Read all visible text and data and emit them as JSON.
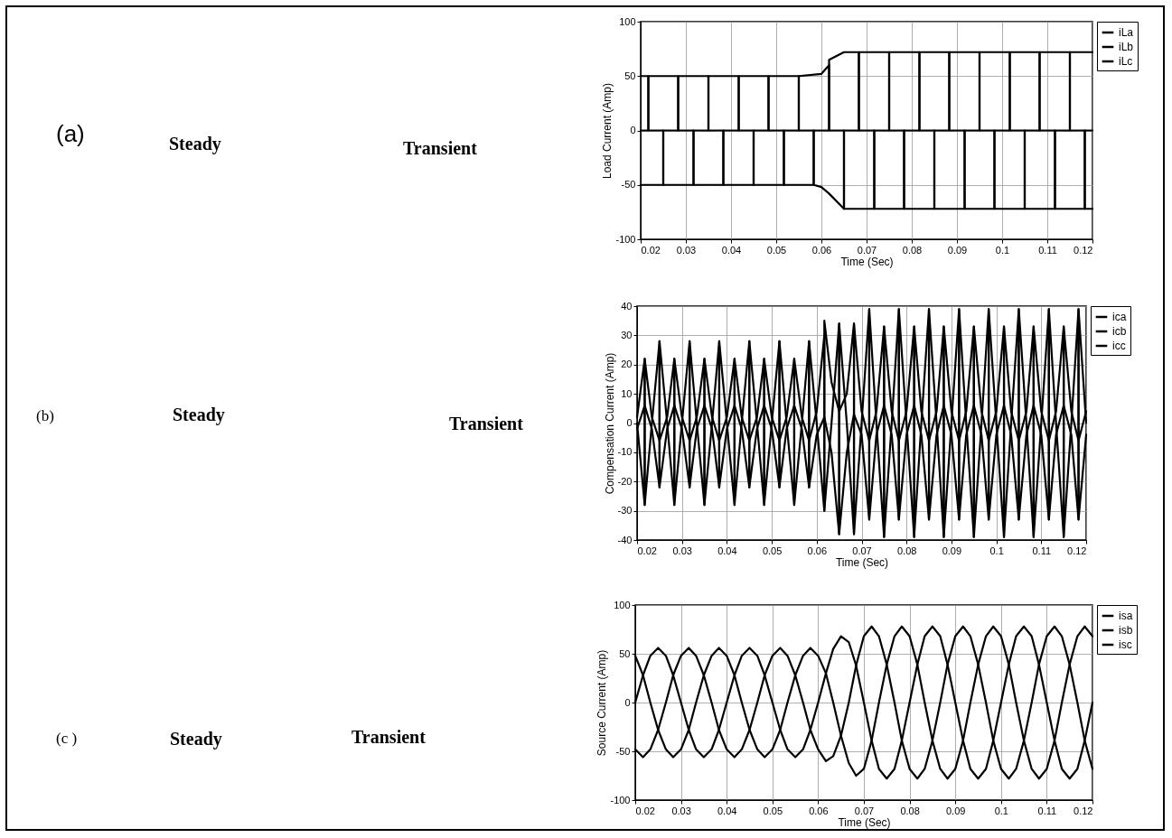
{
  "chart_data": [
    {
      "type": "line",
      "xlabel": "Time (Sec)",
      "ylabel": "Load Current (Amp)",
      "xlim": [
        0.02,
        0.12
      ],
      "ylim": [
        -100,
        100
      ],
      "xticks": [
        0.02,
        0.03,
        0.04,
        0.05,
        0.06,
        0.07,
        0.08,
        0.09,
        0.1,
        0.11,
        0.12
      ],
      "yticks": [
        -100,
        -50,
        0,
        50,
        100
      ],
      "grid": true,
      "legend": "top right",
      "annotations": [
        "(a)",
        "Steady",
        "Transient"
      ],
      "series": [
        {
          "name": "iLa",
          "color": "#000000",
          "x": [
            0.02,
            0.0217,
            0.0217,
            0.0283,
            0.0283,
            0.0317,
            0.0317,
            0.0383,
            0.0383,
            0.0417,
            0.0417,
            0.0483,
            0.0483,
            0.0517,
            0.0517,
            0.0583,
            0.0583,
            0.0617,
            0.0617,
            0.065,
            0.0683,
            0.0683,
            0.0717,
            0.0717,
            0.0783,
            0.0783,
            0.0817,
            0.0817,
            0.0883,
            0.0883,
            0.0917,
            0.0917,
            0.0983,
            0.0983,
            0.1017,
            0.1017,
            0.1083,
            0.1083,
            0.1117,
            0.1117,
            0.1183,
            0.1183,
            0.12
          ],
          "values": [
            0,
            0,
            50,
            50,
            0,
            0,
            -50,
            -50,
            0,
            0,
            50,
            50,
            0,
            0,
            -50,
            -50,
            0,
            0,
            65,
            72,
            72,
            0,
            0,
            -72,
            -72,
            0,
            0,
            72,
            72,
            0,
            0,
            -72,
            -72,
            0,
            0,
            72,
            72,
            0,
            0,
            -72,
            -72,
            0,
            0
          ]
        },
        {
          "name": "iLb",
          "color": "#000000",
          "x": [
            0.02,
            0.025,
            0.025,
            0.0283,
            0.0283,
            0.035,
            0.035,
            0.0383,
            0.0383,
            0.045,
            0.045,
            0.0483,
            0.0483,
            0.055,
            0.055,
            0.0583,
            0.0583,
            0.06,
            0.0617,
            0.065,
            0.065,
            0.0683,
            0.0683,
            0.075,
            0.075,
            0.0783,
            0.0783,
            0.085,
            0.085,
            0.0883,
            0.0883,
            0.095,
            0.095,
            0.0983,
            0.0983,
            0.105,
            0.105,
            0.1083,
            0.1083,
            0.115,
            0.115,
            0.1183,
            0.1183,
            0.12
          ],
          "values": [
            -50,
            -50,
            0,
            0,
            50,
            50,
            0,
            0,
            -50,
            -50,
            0,
            0,
            50,
            50,
            0,
            0,
            -50,
            -52,
            -58,
            -72,
            0,
            0,
            72,
            72,
            0,
            0,
            -72,
            -72,
            0,
            0,
            72,
            72,
            0,
            0,
            -72,
            -72,
            0,
            0,
            72,
            72,
            0,
            0,
            -72,
            -72
          ]
        },
        {
          "name": "iLc",
          "color": "#000000",
          "x": [
            0.02,
            0.0217,
            0.0217,
            0.025,
            0.025,
            0.0317,
            0.0317,
            0.035,
            0.035,
            0.0417,
            0.0417,
            0.045,
            0.045,
            0.0517,
            0.0517,
            0.055,
            0.055,
            0.06,
            0.0617,
            0.0617,
            0.065,
            0.065,
            0.0717,
            0.0717,
            0.075,
            0.075,
            0.0817,
            0.0817,
            0.085,
            0.085,
            0.0917,
            0.0917,
            0.095,
            0.095,
            0.1017,
            0.1017,
            0.105,
            0.105,
            0.1117,
            0.1117,
            0.115,
            0.115,
            0.12
          ],
          "values": [
            50,
            50,
            0,
            0,
            -50,
            -50,
            0,
            0,
            50,
            50,
            0,
            0,
            -50,
            -50,
            0,
            0,
            50,
            52,
            60,
            0,
            0,
            -72,
            -72,
            0,
            0,
            72,
            72,
            0,
            0,
            -72,
            -72,
            0,
            0,
            72,
            72,
            0,
            0,
            -72,
            -72,
            0,
            0,
            72,
            72
          ]
        }
      ]
    },
    {
      "type": "line",
      "xlabel": "Time (Sec)",
      "ylabel": "Compensation Current (Amp)",
      "xlim": [
        0.02,
        0.12
      ],
      "ylim": [
        -40,
        40
      ],
      "xticks": [
        0.02,
        0.03,
        0.04,
        0.05,
        0.06,
        0.07,
        0.08,
        0.09,
        0.1,
        0.11,
        0.12
      ],
      "yticks": [
        -40,
        -30,
        -20,
        -10,
        0,
        10,
        20,
        30,
        40
      ],
      "grid": true,
      "legend": "top right",
      "annotations": [
        "(b)",
        "Steady",
        "Transient"
      ],
      "x": [
        0.02,
        0.0217,
        0.0217,
        0.0233,
        0.025,
        0.025,
        0.0267,
        0.0283,
        0.0283,
        0.03,
        0.0317,
        0.0317,
        0.0333,
        0.035,
        0.035,
        0.0367,
        0.0383,
        0.0383,
        0.04,
        0.0417,
        0.0417,
        0.0433,
        0.045,
        0.045,
        0.0467,
        0.0483,
        0.0483,
        0.05,
        0.0517,
        0.0517,
        0.0533,
        0.055,
        0.055,
        0.0567,
        0.0583,
        0.0583,
        0.06,
        0.0617,
        0.0617,
        0.0633,
        0.065,
        0.065,
        0.0667,
        0.0683,
        0.0683,
        0.07,
        0.0717,
        0.0717,
        0.0733,
        0.075,
        0.075,
        0.0767,
        0.0783,
        0.0783,
        0.08,
        0.0817,
        0.0817,
        0.0833,
        0.085,
        0.085,
        0.0867,
        0.0883,
        0.0883,
        0.09,
        0.0917,
        0.0917,
        0.0933,
        0.095,
        0.095,
        0.0967,
        0.0983,
        0.0983,
        0.1,
        0.1017,
        0.1017,
        0.1033,
        0.105,
        0.105,
        0.1067,
        0.1083,
        0.1083,
        0.11,
        0.1117,
        0.1117,
        0.1133,
        0.115,
        0.115,
        0.1167,
        0.1183,
        0.1183,
        0.12
      ],
      "series": [
        {
          "name": "ica",
          "color": "#000000",
          "values": [
            0,
            -28,
            22,
            2,
            -6,
            -6,
            2,
            22,
            -28,
            0,
            28,
            -22,
            -2,
            6,
            6,
            -2,
            -22,
            28,
            0,
            -28,
            22,
            2,
            -6,
            -6,
            2,
            22,
            -28,
            0,
            28,
            -22,
            -2,
            6,
            6,
            -2,
            -22,
            28,
            0,
            -30,
            35,
            14,
            4,
            4,
            10,
            34,
            -38,
            0,
            39,
            -33,
            -4,
            6,
            6,
            -4,
            -33,
            39,
            0,
            -39,
            33,
            4,
            -6,
            -6,
            4,
            33,
            -39,
            0,
            39,
            -33,
            -4,
            6,
            6,
            -4,
            -33,
            39,
            0,
            -39,
            33,
            4,
            -6,
            -6,
            4,
            33,
            -39,
            0,
            39,
            -33,
            -4,
            6,
            6,
            -4,
            -33,
            39,
            0
          ]
        },
        {
          "name": "icb",
          "color": "#000000",
          "values": [
            -2,
            6,
            6,
            -2,
            -22,
            28,
            0,
            -28,
            22,
            2,
            -6,
            -6,
            2,
            22,
            -28,
            0,
            28,
            -22,
            -2,
            6,
            6,
            -2,
            -22,
            28,
            0,
            -28,
            22,
            2,
            -6,
            -6,
            2,
            22,
            -28,
            0,
            28,
            -22,
            -4,
            2,
            2,
            -10,
            -38,
            34,
            0,
            -38,
            34,
            4,
            -6,
            -6,
            4,
            33,
            -39,
            0,
            39,
            -33,
            -4,
            6,
            6,
            -4,
            -33,
            39,
            0,
            -39,
            33,
            4,
            -6,
            -6,
            4,
            33,
            -39,
            0,
            39,
            -33,
            -4,
            6,
            6,
            -4,
            -33,
            39,
            0,
            -39,
            33,
            4,
            -6,
            -6,
            4,
            33,
            -39,
            0,
            39,
            -33,
            -4
          ]
        },
        {
          "name": "icc",
          "color": "#000000",
          "values": [
            2,
            22,
            -28,
            0,
            28,
            -22,
            -2,
            6,
            6,
            -2,
            -22,
            28,
            0,
            -28,
            22,
            2,
            -6,
            -6,
            2,
            22,
            -28,
            0,
            28,
            -22,
            -2,
            6,
            6,
            -2,
            -22,
            28,
            0,
            -28,
            22,
            2,
            -6,
            -6,
            4,
            30,
            -30,
            0,
            34,
            -38,
            -10,
            3,
            3,
            -4,
            -33,
            39,
            0,
            -39,
            33,
            4,
            -6,
            -6,
            4,
            33,
            -39,
            0,
            39,
            -33,
            -4,
            6,
            6,
            -4,
            -33,
            39,
            0,
            -39,
            33,
            4,
            -6,
            -6,
            4,
            33,
            -39,
            0,
            39,
            -33,
            -4,
            6,
            6,
            -4,
            -33,
            39,
            0,
            -39,
            33,
            4,
            -6,
            -6,
            4
          ]
        }
      ]
    },
    {
      "type": "line",
      "xlabel": "Time (Sec)",
      "ylabel": "Source Current (Amp)",
      "xlim": [
        0.02,
        0.12
      ],
      "ylim": [
        -100,
        100
      ],
      "xticks": [
        0.02,
        0.03,
        0.04,
        0.05,
        0.06,
        0.07,
        0.08,
        0.09,
        0.1,
        0.11,
        0.12
      ],
      "yticks": [
        -100,
        -50,
        0,
        50,
        100
      ],
      "grid": true,
      "legend": "top right",
      "annotations": [
        "(c )",
        "Steady",
        "Transient"
      ],
      "x": [
        0.02,
        0.0217,
        0.0233,
        0.025,
        0.0267,
        0.0283,
        0.03,
        0.0317,
        0.0333,
        0.035,
        0.0367,
        0.0383,
        0.04,
        0.0417,
        0.0433,
        0.045,
        0.0467,
        0.0483,
        0.05,
        0.0517,
        0.0533,
        0.055,
        0.0567,
        0.0583,
        0.06,
        0.0617,
        0.0633,
        0.065,
        0.0667,
        0.0683,
        0.07,
        0.0717,
        0.0733,
        0.075,
        0.0767,
        0.0783,
        0.08,
        0.0817,
        0.0833,
        0.085,
        0.0867,
        0.0883,
        0.09,
        0.0917,
        0.0933,
        0.095,
        0.0967,
        0.0983,
        0.1,
        0.1017,
        0.1033,
        0.105,
        0.1067,
        0.1083,
        0.11,
        0.1117,
        0.1133,
        0.115,
        0.1167,
        0.1183,
        0.12
      ],
      "series": [
        {
          "name": "isa",
          "color": "#000000",
          "values": [
            0,
            28,
            48,
            56,
            48,
            28,
            0,
            -28,
            -48,
            -56,
            -48,
            -28,
            0,
            28,
            48,
            56,
            48,
            28,
            0,
            -28,
            -48,
            -56,
            -48,
            -28,
            0,
            30,
            55,
            68,
            62,
            38,
            0,
            -39,
            -68,
            -78,
            -68,
            -39,
            0,
            39,
            68,
            78,
            68,
            39,
            0,
            -39,
            -68,
            -78,
            -68,
            -39,
            0,
            39,
            68,
            78,
            68,
            39,
            0,
            -39,
            -68,
            -78,
            -68,
            -39,
            0
          ]
        },
        {
          "name": "isb",
          "color": "#000000",
          "values": [
            -48,
            -56,
            -48,
            -28,
            0,
            28,
            48,
            56,
            48,
            28,
            0,
            -28,
            -48,
            -56,
            -48,
            -28,
            0,
            28,
            48,
            56,
            48,
            28,
            0,
            -28,
            -48,
            -60,
            -55,
            -34,
            0,
            38,
            68,
            78,
            68,
            39,
            0,
            -39,
            -68,
            -78,
            -68,
            -39,
            0,
            39,
            68,
            78,
            68,
            39,
            0,
            -39,
            -68,
            -78,
            -68,
            -39,
            0,
            39,
            68,
            78,
            68,
            39,
            0,
            -39,
            -68
          ]
        },
        {
          "name": "isc",
          "color": "#000000",
          "values": [
            48,
            28,
            0,
            -28,
            -48,
            -56,
            -48,
            -28,
            0,
            28,
            48,
            56,
            48,
            28,
            0,
            -28,
            -48,
            -56,
            -48,
            -28,
            0,
            28,
            48,
            56,
            48,
            30,
            0,
            -34,
            -62,
            -75,
            -68,
            -39,
            0,
            39,
            68,
            78,
            68,
            39,
            0,
            -39,
            -68,
            -78,
            -68,
            -39,
            0,
            39,
            68,
            78,
            68,
            39,
            0,
            -39,
            -68,
            -78,
            -68,
            -39,
            0,
            39,
            68,
            78,
            68
          ]
        }
      ]
    }
  ]
}
